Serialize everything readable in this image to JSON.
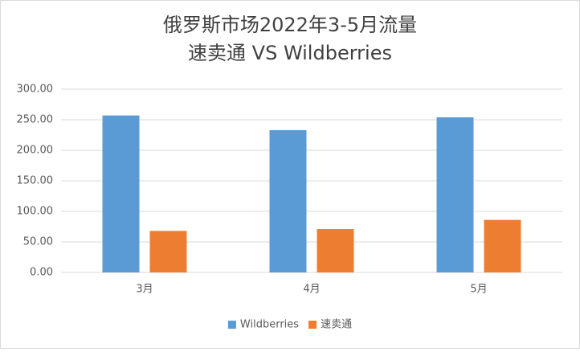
{
  "chart_data": {
    "type": "bar",
    "title": "俄罗斯市场2022年3-5月流量",
    "subtitle": "速卖通 VS  Wildberries",
    "categories": [
      "3月",
      "4月",
      "5月"
    ],
    "series": [
      {
        "name": "Wildberries",
        "color": "#5b9bd5",
        "values": [
          257,
          233,
          254
        ]
      },
      {
        "name": "速卖通",
        "color": "#ed7d31",
        "values": [
          68,
          71,
          86
        ]
      }
    ],
    "ylim": [
      0,
      300
    ],
    "yticks": [
      {
        "value": 0,
        "label": "0.00"
      },
      {
        "value": 50,
        "label": "50.00"
      },
      {
        "value": 100,
        "label": "100.00"
      },
      {
        "value": 150,
        "label": "150.00"
      },
      {
        "value": 200,
        "label": "200.00"
      },
      {
        "value": 250,
        "label": "250.00"
      },
      {
        "value": 300,
        "label": "300.00"
      }
    ],
    "grid": true,
    "legend": "bottom"
  }
}
